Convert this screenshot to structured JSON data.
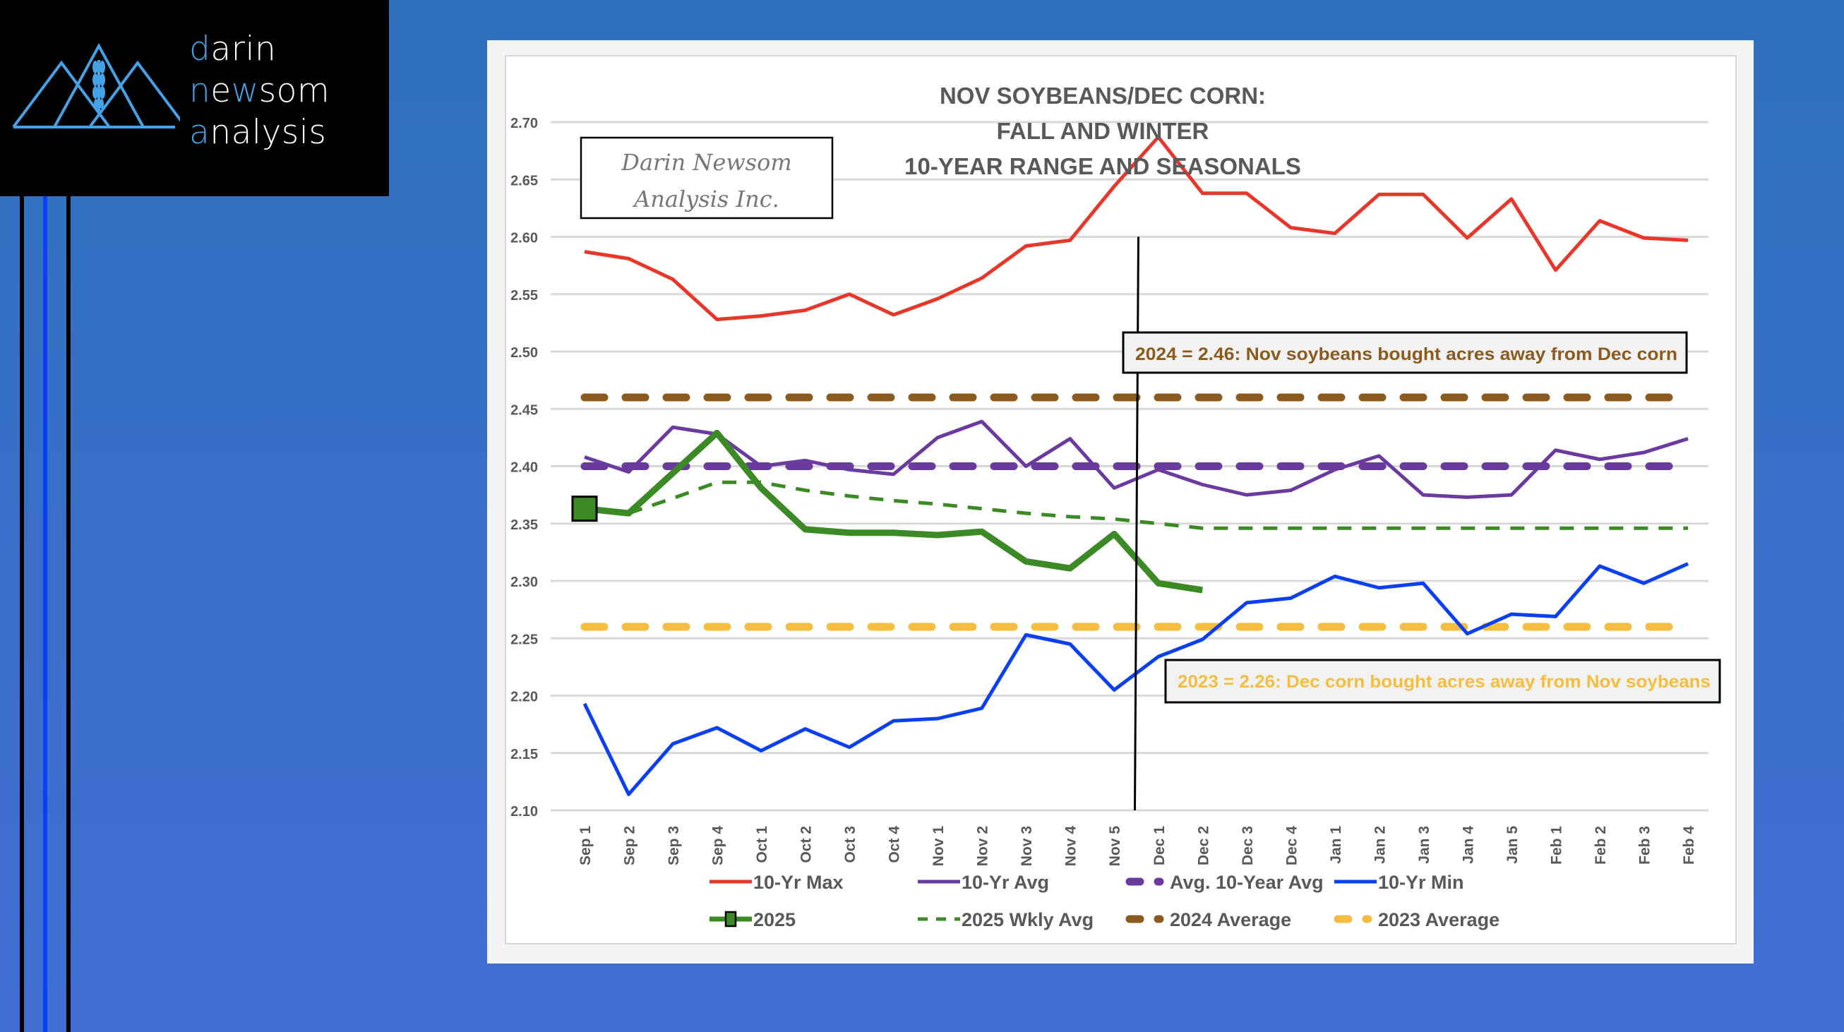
{
  "brand": {
    "lines": [
      {
        "accent": "d",
        "rest": "arin"
      },
      {
        "accent": "n",
        "mid_plain": "e",
        "mid_accent": "w",
        "rest": "som"
      },
      {
        "accent": "a",
        "rest": "nalysis"
      }
    ],
    "colors": {
      "accent": "#45A2E6",
      "text": "#FFFFFF",
      "background": "#000000"
    }
  },
  "watermark": {
    "line1": "Darin Newsom",
    "line2": "Analysis Inc."
  },
  "chart_data": {
    "type": "line",
    "title": [
      "NOV SOYBEANS/DEC CORN:",
      "FALL AND WINTER",
      "10-YEAR RANGE AND SEASONALS"
    ],
    "xlabel": "",
    "ylabel": "",
    "ylim": [
      2.1,
      2.7
    ],
    "yticks": [
      "2.10",
      "2.15",
      "2.20",
      "2.25",
      "2.30",
      "2.35",
      "2.40",
      "2.45",
      "2.50",
      "2.55",
      "2.60",
      "2.65",
      "2.70"
    ],
    "grid": true,
    "legend_position": "bottom",
    "categories": [
      "Sep 1",
      "Sep 2",
      "Sep 3",
      "Sep 4",
      "Oct 1",
      "Oct 2",
      "Oct 3",
      "Oct 4",
      "Nov 1",
      "Nov 2",
      "Nov 3",
      "Nov 4",
      "Nov 5",
      "Dec 1",
      "Dec 2",
      "Dec 3",
      "Dec 4",
      "Jan 1",
      "Jan 2",
      "Jan 3",
      "Jan 4",
      "Jan 5",
      "Feb 1",
      "Feb 2",
      "Feb 3",
      "Feb 4"
    ],
    "series": [
      {
        "name": "10-Yr Max",
        "style": "solid",
        "color": "#E8372A",
        "values": [
          2.587,
          2.581,
          2.563,
          2.528,
          2.531,
          2.536,
          2.55,
          2.532,
          2.546,
          2.564,
          2.592,
          2.597,
          2.644,
          2.687,
          2.638,
          2.638,
          2.608,
          2.603,
          2.637,
          2.637,
          2.599,
          2.633,
          2.571,
          2.614,
          2.599,
          2.597
        ]
      },
      {
        "name": "10-Yr Avg",
        "style": "solid",
        "color": "#6A3A9E",
        "values": [
          2.408,
          2.395,
          2.434,
          2.428,
          2.4,
          2.405,
          2.397,
          2.393,
          2.425,
          2.439,
          2.4,
          2.424,
          2.381,
          2.397,
          2.384,
          2.375,
          2.379,
          2.397,
          2.409,
          2.375,
          2.373,
          2.375,
          2.414,
          2.406,
          2.412,
          2.424
        ]
      },
      {
        "name": "Avg. 10-Year Avg",
        "style": "dash-thick",
        "color": "#6A3A9E",
        "values": [
          2.4,
          2.4,
          2.4,
          2.4,
          2.4,
          2.4,
          2.4,
          2.4,
          2.4,
          2.4,
          2.4,
          2.4,
          2.4,
          2.4,
          2.4,
          2.4,
          2.4,
          2.4,
          2.4,
          2.4,
          2.4,
          2.4,
          2.4,
          2.4,
          2.4,
          2.4
        ]
      },
      {
        "name": "10-Yr Min",
        "style": "solid",
        "color": "#0A3FF5",
        "values": [
          2.193,
          2.114,
          2.158,
          2.172,
          2.152,
          2.171,
          2.155,
          2.178,
          2.18,
          2.189,
          2.253,
          2.245,
          2.205,
          2.234,
          2.249,
          2.281,
          2.285,
          2.304,
          2.294,
          2.298,
          2.254,
          2.271,
          2.269,
          2.313,
          2.298,
          2.315
        ]
      },
      {
        "name": "2025",
        "style": "solid-thick-marker",
        "color": "#3C8A25",
        "values": [
          2.363,
          2.359,
          2.394,
          2.429,
          2.381,
          2.345,
          2.342,
          2.342,
          2.34,
          2.343,
          2.317,
          2.311,
          2.341,
          2.298,
          2.292,
          null,
          null,
          null,
          null,
          null,
          null,
          null,
          null,
          null,
          null,
          null
        ]
      },
      {
        "name": "2025 Wkly Avg",
        "style": "dash-thin",
        "color": "#3C8A25",
        "values": [
          null,
          2.359,
          2.372,
          2.386,
          2.386,
          2.379,
          2.374,
          2.37,
          2.367,
          2.363,
          2.359,
          2.356,
          2.354,
          2.35,
          2.346,
          2.346,
          2.346,
          2.346,
          2.346,
          2.346,
          2.346,
          2.346,
          2.346,
          2.346,
          2.346,
          2.346
        ]
      },
      {
        "name": "2024 Average",
        "style": "dash-thick",
        "color": "#8B5A1E",
        "values": [
          2.46,
          2.46,
          2.46,
          2.46,
          2.46,
          2.46,
          2.46,
          2.46,
          2.46,
          2.46,
          2.46,
          2.46,
          2.46,
          2.46,
          2.46,
          2.46,
          2.46,
          2.46,
          2.46,
          2.46,
          2.46,
          2.46,
          2.46,
          2.46,
          2.46,
          2.46
        ]
      },
      {
        "name": "2023 Average",
        "style": "dash-thick",
        "color": "#F5BE40",
        "values": [
          2.26,
          2.26,
          2.26,
          2.26,
          2.26,
          2.26,
          2.26,
          2.26,
          2.26,
          2.26,
          2.26,
          2.26,
          2.26,
          2.26,
          2.26,
          2.26,
          2.26,
          2.26,
          2.26,
          2.26,
          2.26,
          2.26,
          2.26,
          2.26,
          2.26,
          2.26
        ]
      }
    ],
    "legend_order": [
      [
        "10-Yr Max",
        "10-Yr Avg",
        "Avg. 10-Year Avg",
        "10-Yr Min"
      ],
      [
        "2025",
        "2025 Wkly Avg",
        "2024 Average",
        "2023 Average"
      ]
    ],
    "vertical_marker": {
      "between": [
        "Nov 5",
        "Dec 1"
      ],
      "position_index": 12.5,
      "from_value": 2.6,
      "to_value": 2.1
    },
    "annotations": [
      {
        "text": "2024 = 2.46: Nov soybeans bought acres away from Dec corn",
        "color": "#8B5A1E"
      },
      {
        "text": "2023 = 2.26: Dec corn bought acres away from Nov soybeans",
        "color": "#F5BE40"
      }
    ]
  }
}
